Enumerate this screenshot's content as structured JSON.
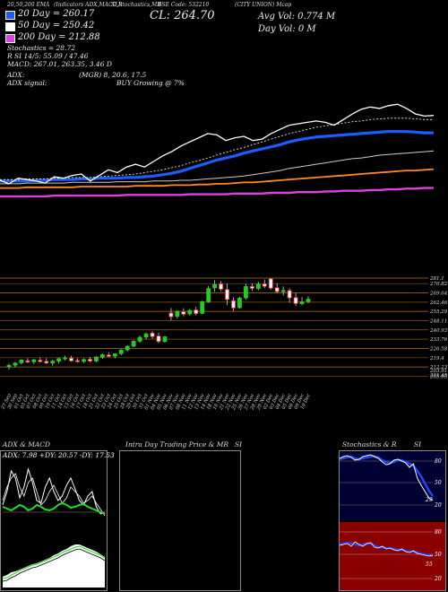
{
  "header": {
    "left_title": "20,50,200 EMA",
    "strip_text": "(Indicators ADX,MACD,R",
    "mid_text": "SI,Stochastics,MR",
    "code": "BSE Code: 532210",
    "company": "(CITY UNION) Mcap"
  },
  "ema_legend": [
    {
      "label": "20 Day = 260.17",
      "color": "#1e5cff"
    },
    {
      "label": "50 Day = 250.42",
      "color": "#ffffff"
    },
    {
      "label": "200 Day = 212.88",
      "color": "#e040e0"
    }
  ],
  "close_label": "CL: 264.70",
  "avg_vol": "Avg Vol: 0.774  M",
  "day_vol": "Day Vol: 0   M",
  "indicators": {
    "stochastics": "Stochastics = 28.72",
    "rsi": "R            SI 14/5: 55.09 / 47.46",
    "macd": "MACD: 267.01, 263.35, 3.46  D",
    "adx": "ADX:",
    "adx_values": "(MGR) 8, 20.6,  17.5",
    "adx_signal_label": "ADX  signal:",
    "signal": "BUY Growing @ 7%"
  },
  "chart_data": {
    "type": "line",
    "price_levels": [
      "281.1",
      "276.82",
      "269.64",
      "262.46",
      "255.29",
      "248.11",
      "240.93",
      "233.76",
      "226.58",
      "219.4",
      "212.23",
      "205.05"
    ],
    "last_levels": [
      "203.91",
      "201.45"
    ],
    "dates": [
      "27 Sep",
      "30 Sep",
      "01 Oct",
      "03 Oct",
      "07 Oct",
      "08 Oct",
      "09 Oct",
      "10 Oct",
      "11 Oct",
      "14 Oct",
      "15 Oct",
      "16 Oct",
      "17 Oct",
      "18 Oct",
      "21 Oct",
      "22 Oct",
      "23 Oct",
      "24 Oct",
      "25 Oct",
      "28 Oct",
      "29 Oct",
      "30 Oct",
      "31 Oct",
      "01 Nov",
      "04 Nov",
      "05 Nov",
      "06 Nov",
      "07 Nov",
      "08 Nov",
      "11 Nov",
      "12 Nov",
      "13 Nov",
      "14 Nov",
      "18 Nov",
      "19 Nov",
      "21 Nov",
      "22 Nov",
      "25 Nov",
      "26 Nov",
      "27 Nov",
      "28 Nov",
      "29 Nov",
      "02 Dec",
      "03 Dec",
      "04 Dec",
      "05 Dec",
      "06 Dec",
      "09 Dec",
      "10 Dec"
    ],
    "candles": [
      {
        "o": 212.5,
        "h": 214.8,
        "l": 210.2,
        "c": 213.4
      },
      {
        "o": 213.6,
        "h": 216.0,
        "l": 212.0,
        "c": 215.2
      },
      {
        "o": 215.5,
        "h": 218.2,
        "l": 214.2,
        "c": 217.6
      },
      {
        "o": 217.0,
        "h": 219.0,
        "l": 215.3,
        "c": 216.0
      },
      {
        "o": 216.2,
        "h": 218.4,
        "l": 214.6,
        "c": 217.8
      },
      {
        "o": 217.5,
        "h": 219.6,
        "l": 215.8,
        "c": 216.4
      },
      {
        "o": 216.6,
        "h": 219.0,
        "l": 214.5,
        "c": 215.3
      },
      {
        "o": 215.3,
        "h": 217.8,
        "l": 213.2,
        "c": 216.7
      },
      {
        "o": 216.8,
        "h": 219.6,
        "l": 215.0,
        "c": 218.6
      },
      {
        "o": 218.8,
        "h": 221.0,
        "l": 217.2,
        "c": 219.2
      },
      {
        "o": 219.0,
        "h": 220.8,
        "l": 216.2,
        "c": 217.0
      },
      {
        "o": 217.2,
        "h": 219.0,
        "l": 215.6,
        "c": 216.3
      },
      {
        "o": 216.5,
        "h": 218.9,
        "l": 215.2,
        "c": 218.0
      },
      {
        "o": 218.2,
        "h": 220.0,
        "l": 216.0,
        "c": 216.8
      },
      {
        "o": 216.9,
        "h": 220.6,
        "l": 215.9,
        "c": 219.9
      },
      {
        "o": 220.0,
        "h": 222.5,
        "l": 218.6,
        "c": 221.7
      },
      {
        "o": 221.5,
        "h": 223.6,
        "l": 219.8,
        "c": 220.4
      },
      {
        "o": 220.6,
        "h": 223.0,
        "l": 218.9,
        "c": 222.4
      },
      {
        "o": 222.6,
        "h": 226.0,
        "l": 221.5,
        "c": 225.3
      },
      {
        "o": 225.5,
        "h": 229.0,
        "l": 224.2,
        "c": 228.2
      },
      {
        "o": 228.3,
        "h": 233.0,
        "l": 227.6,
        "c": 232.1
      },
      {
        "o": 232.2,
        "h": 236.5,
        "l": 231.0,
        "c": 235.2
      },
      {
        "o": 235.4,
        "h": 239.0,
        "l": 233.6,
        "c": 237.8
      },
      {
        "o": 238.5,
        "h": 240.0,
        "l": 234.2,
        "c": 235.8
      },
      {
        "o": 236.2,
        "h": 238.8,
        "l": 230.5,
        "c": 232.0
      },
      {
        "o": 232.0,
        "h": 236.4,
        "l": 231.0,
        "c": 235.6
      },
      {
        "o": 254.0,
        "h": 258.0,
        "l": 248.2,
        "c": 251.2
      },
      {
        "o": 251.5,
        "h": 256.0,
        "l": 249.8,
        "c": 255.3
      },
      {
        "o": 255.0,
        "h": 257.8,
        "l": 251.5,
        "c": 253.1
      },
      {
        "o": 253.3,
        "h": 257.2,
        "l": 252.0,
        "c": 256.0
      },
      {
        "o": 256.4,
        "h": 259.0,
        "l": 252.2,
        "c": 253.6
      },
      {
        "o": 253.8,
        "h": 263.5,
        "l": 253.0,
        "c": 262.8
      },
      {
        "o": 262.8,
        "h": 275.0,
        "l": 262.0,
        "c": 272.9
      },
      {
        "o": 273.5,
        "h": 279.5,
        "l": 270.5,
        "c": 276.0
      },
      {
        "o": 276.5,
        "h": 278.6,
        "l": 271.0,
        "c": 272.5
      },
      {
        "o": 272.2,
        "h": 276.8,
        "l": 260.0,
        "c": 264.6
      },
      {
        "o": 263.5,
        "h": 266.2,
        "l": 255.5,
        "c": 258.0
      },
      {
        "o": 258.2,
        "h": 266.5,
        "l": 257.5,
        "c": 265.5
      },
      {
        "o": 265.8,
        "h": 276.5,
        "l": 264.5,
        "c": 274.5
      },
      {
        "o": 274.6,
        "h": 277.0,
        "l": 271.2,
        "c": 273.1
      },
      {
        "o": 273.0,
        "h": 278.2,
        "l": 271.6,
        "c": 276.4
      },
      {
        "o": 276.6,
        "h": 280.0,
        "l": 273.2,
        "c": 274.8
      },
      {
        "o": 280.5,
        "h": 281.0,
        "l": 272.0,
        "c": 273.3
      },
      {
        "o": 273.6,
        "h": 277.2,
        "l": 269.4,
        "c": 270.6
      },
      {
        "o": 270.6,
        "h": 274.6,
        "l": 267.6,
        "c": 271.5
      },
      {
        "o": 271.4,
        "h": 273.2,
        "l": 262.0,
        "c": 265.8
      },
      {
        "o": 266.0,
        "h": 269.6,
        "l": 259.4,
        "c": 261.4
      },
      {
        "o": 261.3,
        "h": 266.4,
        "l": 260.0,
        "c": 262.8
      },
      {
        "o": 262.9,
        "h": 267.0,
        "l": 261.6,
        "c": 264.7
      }
    ],
    "ema_lines": {
      "price_close_wiggle": [
        63,
        58,
        66,
        64,
        62,
        59,
        68,
        66,
        70,
        72,
        62,
        70,
        78,
        74,
        82,
        86,
        82,
        90,
        98,
        104,
        112,
        118,
        124,
        130,
        128,
        120,
        124,
        126,
        120,
        122,
        130,
        136,
        142,
        144,
        146,
        148,
        146,
        142,
        150,
        158,
        165,
        168,
        166,
        170,
        172,
        166,
        158,
        155,
        156
      ],
      "ema20": [
        62,
        62,
        62,
        62,
        63,
        63,
        64,
        64,
        64,
        65,
        65,
        66,
        66,
        66,
        67,
        67,
        68,
        69,
        71,
        73,
        76,
        80,
        84,
        88,
        92,
        95,
        98,
        102,
        105,
        108,
        111,
        114,
        118,
        121,
        123,
        125,
        126,
        127,
        128,
        129,
        130,
        131,
        132,
        133,
        133,
        133,
        132,
        131,
        131
      ],
      "ema50": [
        58,
        58,
        58,
        59,
        59,
        59,
        59,
        59,
        60,
        60,
        60,
        60,
        60,
        61,
        61,
        61,
        61,
        62,
        62,
        62,
        63,
        63,
        64,
        65,
        66,
        67,
        68,
        69,
        71,
        73,
        75,
        77,
        80,
        82,
        84,
        86,
        88,
        90,
        92,
        94,
        95,
        97,
        99,
        100,
        101,
        102,
        103,
        104,
        105
      ],
      "ema100": [
        52,
        52,
        52,
        53,
        53,
        53,
        53,
        53,
        53,
        54,
        54,
        54,
        54,
        54,
        54,
        55,
        55,
        55,
        55,
        56,
        56,
        56,
        57,
        57,
        58,
        58,
        59,
        60,
        60,
        61,
        62,
        63,
        64,
        65,
        66,
        67,
        68,
        69,
        70,
        71,
        72,
        73,
        74,
        75,
        76,
        77,
        77,
        78,
        79
      ],
      "ema200": [
        40,
        40,
        40,
        40,
        40,
        40,
        41,
        41,
        41,
        41,
        41,
        41,
        41,
        41,
        42,
        42,
        42,
        42,
        42,
        42,
        42,
        43,
        43,
        43,
        43,
        43,
        44,
        44,
        44,
        44,
        45,
        45,
        45,
        46,
        46,
        46,
        47,
        47,
        48,
        48,
        48,
        49,
        49,
        50,
        50,
        51,
        51,
        52,
        52
      ],
      "ema_dotted": [
        64,
        64,
        64,
        65,
        65,
        65,
        66,
        66,
        67,
        67,
        67,
        68,
        69,
        70,
        71,
        72,
        74,
        76,
        78,
        81,
        84,
        88,
        91,
        95,
        99,
        103,
        107,
        110,
        114,
        118,
        122,
        126,
        130,
        133,
        136,
        139,
        141,
        143,
        145,
        147,
        148,
        150,
        151,
        152,
        152,
        152,
        151,
        150,
        150
      ]
    }
  },
  "panels": {
    "adx_macd": {
      "title": "ADX  & MACD",
      "adx_reading": "ADX: 7.98  +DY: 20.57 -DY: 17.53"
    },
    "intraday": {
      "title": "Intra  Day Trading Price  & MR",
      "suffix": "SI"
    },
    "stoch_rsi": {
      "title": "Stochastics & R",
      "suffix": "SI"
    },
    "stoch_levels": [
      "80",
      "50",
      "20"
    ],
    "stoch_k_value": "29",
    "rsi_levels": [
      "80",
      "50",
      "20"
    ],
    "rsi_value": "55"
  }
}
